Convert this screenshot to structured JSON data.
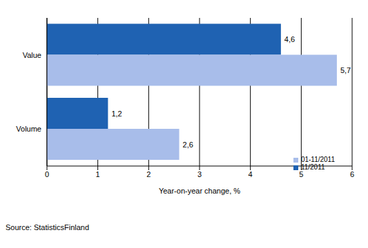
{
  "chart_data": {
    "type": "bar",
    "orientation": "horizontal",
    "categories": [
      "Value",
      "Volume"
    ],
    "series": [
      {
        "name": "11/2011",
        "color": "#1f62b2",
        "values": [
          4.6,
          1.2
        ],
        "value_labels": [
          "4,6",
          "1,2"
        ]
      },
      {
        "name": "01-11/2011",
        "color": "#a8bdea",
        "values": [
          5.7,
          2.6
        ],
        "value_labels": [
          "5,7",
          "2,6"
        ]
      }
    ],
    "xlim": [
      0,
      6
    ],
    "xticks": [
      0,
      1,
      2,
      3,
      4,
      5,
      6
    ],
    "x_label": "Year-on-year change, %",
    "source": "Source: StatisticsFinland",
    "grid": true,
    "data_labels": true,
    "legend": "lower right"
  }
}
